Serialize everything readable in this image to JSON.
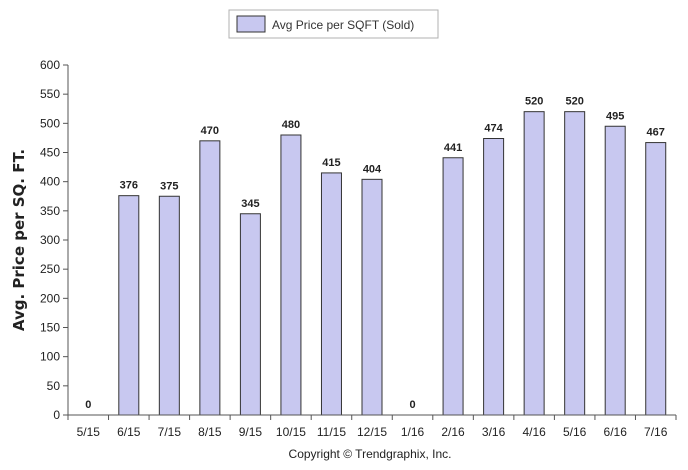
{
  "chart_data": {
    "type": "bar",
    "categories": [
      "5/15",
      "6/15",
      "7/15",
      "8/15",
      "9/15",
      "10/15",
      "11/15",
      "12/15",
      "1/16",
      "2/16",
      "3/16",
      "4/16",
      "5/16",
      "6/16",
      "7/16"
    ],
    "series": [
      {
        "name": "Avg Price per SQFT (Sold)",
        "values": [
          0,
          376,
          375,
          470,
          345,
          480,
          415,
          404,
          0,
          441,
          474,
          520,
          520,
          495,
          467
        ]
      }
    ],
    "data_labels": [
      "0",
      "376",
      "375",
      "470",
      "345",
      "480",
      "415",
      "404",
      "0",
      "441",
      "474",
      "520",
      "520",
      "495",
      "467"
    ],
    "ylabel": "Avg. Price per SQ. FT.",
    "xlabel": "",
    "ylim": [
      0,
      600
    ],
    "yticks": [
      0,
      50,
      100,
      150,
      200,
      250,
      300,
      350,
      400,
      450,
      500,
      550,
      600
    ],
    "grid": false,
    "legend_position": "top-center",
    "bar_color": "#c8c8f0",
    "bar_stroke": "#333333"
  },
  "footer": {
    "copyright": "Copyright © Trendgraphix, Inc."
  }
}
